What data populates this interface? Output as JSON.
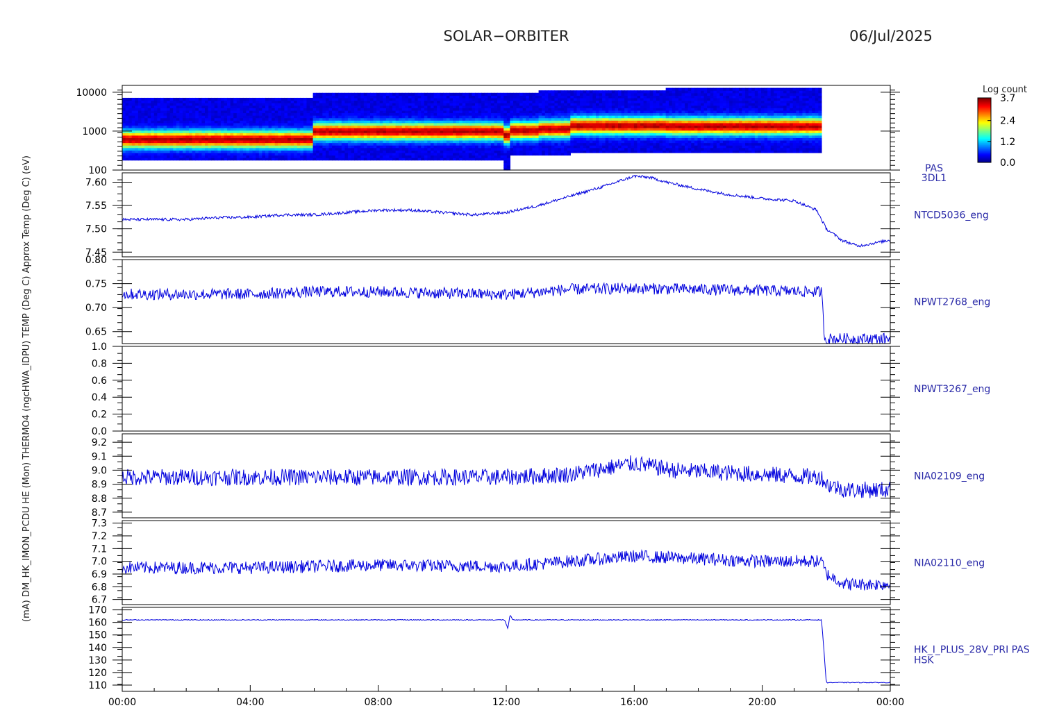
{
  "header": {
    "mission": "SOLAR−ORBITER",
    "date": "06/Jul/2025"
  },
  "colors": {
    "trace": "#0000dd",
    "axis": "#000000",
    "label": "#2a2aa8",
    "background": "#ffffff"
  },
  "colorbar": {
    "title": "Log count",
    "ticks": [
      "3.7",
      "2.4",
      "1.2",
      "0.0"
    ],
    "range": [
      0.0,
      3.7
    ]
  },
  "x_axis": {
    "ticks": [
      "00:00",
      "04:00",
      "08:00",
      "12:00",
      "16:00",
      "20:00",
      "00:00"
    ]
  },
  "y_axis_title": "(mA) DM_HK_IMON_PCDU HE (Mon) THERMO4 (ngcHWA_IDPU) TEMP (Deg C) Approx Temp (Deg C) (eV)",
  "chart_data": [
    {
      "type": "heatmap",
      "id": "pas",
      "yscale": "log",
      "ylim": [
        100,
        15000
      ],
      "yticks": [
        "10000",
        "1000",
        "100"
      ],
      "right_label": [
        "PAS",
        "3DL1"
      ],
      "data_end_hour": 21.85,
      "colorbar": "Log count",
      "band_summary": [
        {
          "x": [
            0.0,
            6.0
          ],
          "y_low": 170,
          "y_high": 7500,
          "peak_energy": 620
        },
        {
          "x": [
            6.0,
            11.9
          ],
          "y_low": 180,
          "y_high": 10000,
          "peak_energy": 1000
        },
        {
          "x": [
            11.9,
            12.15
          ],
          "y_low": 100,
          "y_high": 9000,
          "peak_energy": 800
        },
        {
          "x": [
            12.15,
            13.0
          ],
          "y_low": 240,
          "y_high": 10000,
          "peak_energy": 1050
        },
        {
          "x": [
            13.0,
            14.0
          ],
          "y_low": 250,
          "y_high": 11000,
          "peak_energy": 1150
        },
        {
          "x": [
            14.0,
            17.0
          ],
          "y_low": 270,
          "y_high": 12000,
          "peak_energy": 1400
        },
        {
          "x": [
            17.0,
            21.85
          ],
          "y_low": 280,
          "y_high": 12500,
          "peak_energy": 1350
        }
      ]
    },
    {
      "type": "line",
      "id": "ntcd",
      "ylim": [
        7.44,
        7.62
      ],
      "yticks": [
        "7.60",
        "7.55",
        "7.50",
        "7.45"
      ],
      "right_label": [
        "NTCD5036_eng"
      ],
      "noise": 0.003,
      "x": [
        0,
        1,
        2,
        3,
        4,
        5,
        6,
        7,
        8,
        9,
        10,
        11,
        12,
        13,
        14,
        15,
        16,
        16.5,
        17,
        18,
        19,
        20,
        21,
        21.7,
        22,
        22.5,
        23,
        24
      ],
      "y": [
        7.52,
        7.52,
        7.52,
        7.524,
        7.525,
        7.53,
        7.53,
        7.535,
        7.54,
        7.54,
        7.535,
        7.53,
        7.535,
        7.55,
        7.57,
        7.59,
        7.613,
        7.61,
        7.6,
        7.585,
        7.573,
        7.565,
        7.56,
        7.54,
        7.5,
        7.475,
        7.463,
        7.476
      ]
    },
    {
      "type": "line",
      "id": "npwt2768",
      "ylim": [
        0.625,
        0.8
      ],
      "yticks": [
        "0.80",
        "0.75",
        "0.70",
        "0.65"
      ],
      "right_label": [
        "NPWT2768_eng"
      ],
      "noise": 0.012,
      "x": [
        0,
        4,
        6,
        8,
        12,
        14,
        16,
        18,
        21.85,
        21.95,
        24
      ],
      "y": [
        0.728,
        0.728,
        0.733,
        0.733,
        0.727,
        0.738,
        0.74,
        0.738,
        0.733,
        0.635,
        0.635
      ]
    },
    {
      "type": "line",
      "id": "npwt3267",
      "ylim": [
        0.0,
        1.0
      ],
      "yticks": [
        "1.0",
        "0.8",
        "0.6",
        "0.4",
        "0.2",
        "0.0"
      ],
      "right_label": [
        "NPWT3267_eng"
      ],
      "noise": 0.0,
      "x": [
        0,
        24
      ],
      "y": [
        0.0,
        0.0
      ]
    },
    {
      "type": "line",
      "id": "nia02109",
      "ylim": [
        8.66,
        9.26
      ],
      "yticks": [
        "9.2",
        "9.1",
        "9.0",
        "8.9",
        "8.8",
        "8.7"
      ],
      "right_label": [
        "NIA02109_eng"
      ],
      "noise": 0.06,
      "x": [
        0,
        4,
        8,
        12,
        14,
        16,
        17.2,
        20,
        21.85,
        22,
        22.6,
        24
      ],
      "y": [
        8.95,
        8.95,
        8.95,
        8.95,
        8.97,
        9.05,
        9.0,
        8.97,
        8.95,
        8.9,
        8.86,
        8.86
      ]
    },
    {
      "type": "line",
      "id": "nia02110",
      "ylim": [
        6.66,
        7.32
      ],
      "yticks": [
        "7.3",
        "7.2",
        "7.1",
        "7.0",
        "6.9",
        "6.8",
        "6.7"
      ],
      "right_label": [
        "NIA02110_eng"
      ],
      "noise": 0.05,
      "x": [
        0,
        4,
        8,
        12,
        14,
        16,
        18,
        20,
        21.85,
        22,
        22.6,
        24
      ],
      "y": [
        6.95,
        6.95,
        6.97,
        6.96,
        7.0,
        7.04,
        7.02,
        7.0,
        7.0,
        6.9,
        6.82,
        6.82
      ]
    },
    {
      "type": "line",
      "id": "hk28v",
      "ylim": [
        105,
        172
      ],
      "yticks": [
        "170",
        "160",
        "150",
        "140",
        "130",
        "120",
        "110"
      ],
      "right_label": [
        "HK_I_PLUS_28V_PRI PAS",
        "HSK"
      ],
      "noise": 0.3,
      "x": [
        0,
        11.95,
        12.05,
        12.12,
        12.2,
        21.85,
        21.92,
        22.0,
        24
      ],
      "y": [
        162,
        162,
        155,
        166,
        162,
        162,
        140,
        112,
        112
      ]
    }
  ]
}
